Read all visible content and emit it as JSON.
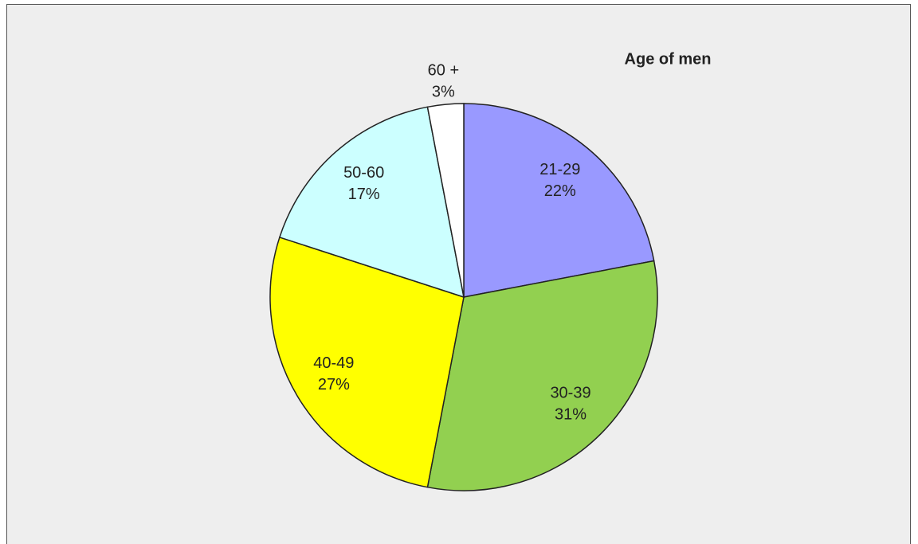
{
  "chart_data": {
    "type": "pie",
    "title": "Age of men",
    "categories": [
      "21-29",
      "30-39",
      "40-49",
      "50-60",
      "60 +"
    ],
    "values": [
      22,
      31,
      27,
      17,
      3
    ],
    "value_labels": [
      "22%",
      "31%",
      "27%",
      "17%",
      "3%"
    ],
    "colors": [
      "#9999ff",
      "#92d050",
      "#ffff00",
      "#ccffff",
      "#ffffff"
    ]
  }
}
